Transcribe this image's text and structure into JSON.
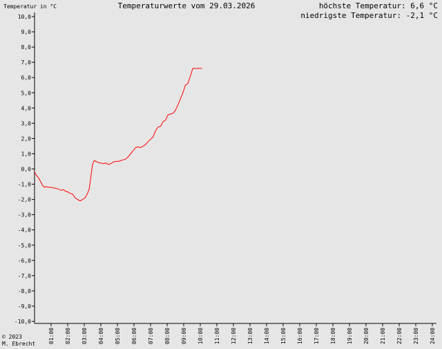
{
  "chart_data": {
    "type": "line",
    "title": "Temperaturwerte vom 29.03.2026",
    "ylabel": "Temperatur in °C",
    "stats": {
      "max_label": "höchste Temperatur: 6,6 °C",
      "min_label": "niedrigste Temperatur: -2,1 °C"
    },
    "copyright": [
      "© 2023",
      "M. Ebrecht"
    ],
    "ylim": [
      -10,
      10
    ],
    "xlim": [
      0,
      24
    ],
    "y_ticks": [
      "10,0",
      "9,0",
      "8,0",
      "7,0",
      "6,0",
      "5,0",
      "4,0",
      "3,0",
      "2,0",
      "1,0",
      "0,0",
      "-1,0",
      "-2,0",
      "-3,0",
      "-4,0",
      "-5,0",
      "-6,0",
      "-7,0",
      "-8,0",
      "-9,0",
      "-10,0"
    ],
    "x_ticks": [
      "01:00",
      "02:00",
      "03:00",
      "04:00",
      "05:00",
      "06:00",
      "07:00",
      "08:00",
      "09:00",
      "10:00",
      "11:00",
      "12:00",
      "13:00",
      "14:00",
      "15:00",
      "16:00",
      "17:00",
      "18:00",
      "19:00",
      "20:00",
      "21:00",
      "22:00",
      "23:00",
      "24:00"
    ],
    "grid": false,
    "series": [
      {
        "color": "#ff0000",
        "x": [
          0.0,
          0.1,
          0.25,
          0.4,
          0.5,
          0.6,
          0.7,
          0.85,
          1.0,
          1.2,
          1.4,
          1.6,
          1.75,
          1.85,
          2.0,
          2.15,
          2.3,
          2.45,
          2.6,
          2.75,
          2.9,
          3.05,
          3.2,
          3.3,
          3.4,
          3.5,
          3.6,
          3.7,
          3.8,
          3.9,
          4.0,
          4.15,
          4.3,
          4.45,
          4.6,
          4.75,
          4.9,
          5.05,
          5.2,
          5.35,
          5.5,
          5.65,
          5.8,
          5.95,
          6.1,
          6.25,
          6.4,
          6.55,
          6.7,
          6.85,
          7.0,
          7.15,
          7.3,
          7.45,
          7.6,
          7.75,
          7.9,
          8.05,
          8.2,
          8.35,
          8.5,
          8.65,
          8.8,
          8.95,
          9.1,
          9.25,
          9.4,
          9.55,
          9.7,
          9.85,
          10.0,
          10.1
        ],
        "values": [
          -0.2,
          -0.4,
          -0.6,
          -0.9,
          -1.1,
          -1.2,
          -1.15,
          -1.2,
          -1.2,
          -1.25,
          -1.3,
          -1.4,
          -1.35,
          -1.45,
          -1.5,
          -1.6,
          -1.65,
          -1.9,
          -2.0,
          -2.1,
          -2.0,
          -1.9,
          -1.6,
          -1.3,
          -0.5,
          0.3,
          0.55,
          0.5,
          0.45,
          0.4,
          0.4,
          0.35,
          0.4,
          0.3,
          0.35,
          0.45,
          0.5,
          0.5,
          0.55,
          0.6,
          0.65,
          0.8,
          1.0,
          1.2,
          1.4,
          1.45,
          1.4,
          1.5,
          1.6,
          1.8,
          1.95,
          2.1,
          2.5,
          2.75,
          2.8,
          3.1,
          3.2,
          3.55,
          3.6,
          3.65,
          3.85,
          4.2,
          4.6,
          5.0,
          5.5,
          5.6,
          6.1,
          6.6,
          6.6,
          6.6,
          6.6,
          6.6
        ]
      }
    ]
  }
}
